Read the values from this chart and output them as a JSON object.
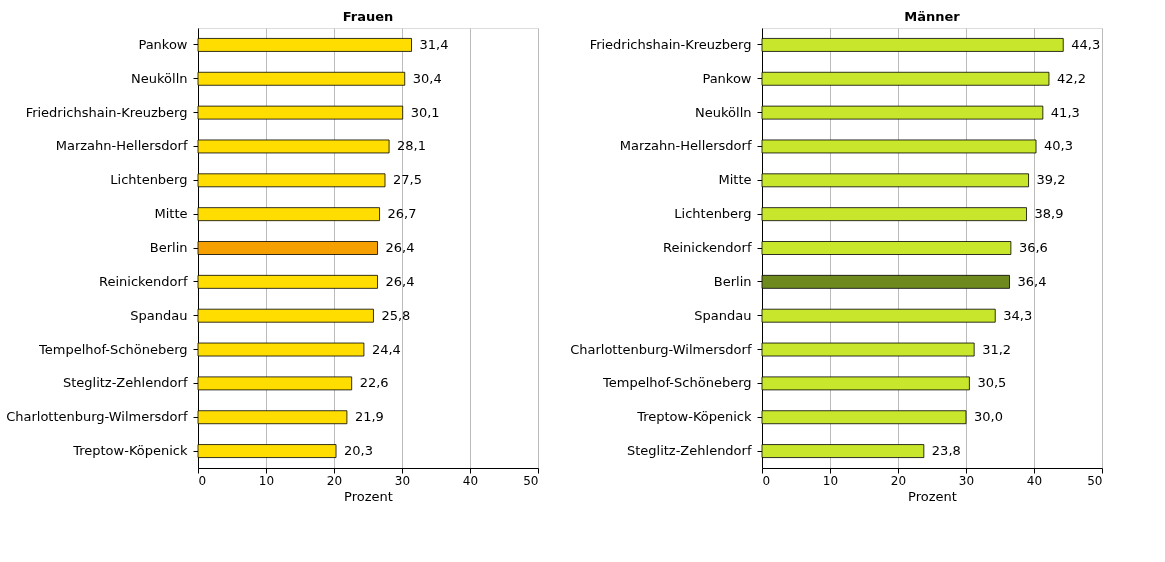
{
  "chart_data": [
    {
      "type": "bar",
      "orientation": "horizontal",
      "title": "Frauen",
      "xlabel": "Prozent",
      "categories": [
        "Pankow",
        "Neukölln",
        "Friedrichshain-Kreuzberg",
        "Marzahn-Hellersdorf",
        "Lichtenberg",
        "Mitte",
        "Berlin",
        "Reinickendorf",
        "Spandau",
        "Tempelhof-Schöneberg",
        "Steglitz-Zehlendorf",
        "Charlottenburg-Wilmersdorf",
        "Treptow-Köpenick"
      ],
      "values": [
        31.4,
        30.4,
        30.1,
        28.1,
        27.5,
        26.7,
        26.4,
        26.4,
        25.8,
        24.4,
        22.6,
        21.9,
        20.3
      ],
      "colors": [
        "#ffdd00",
        "#ffdd00",
        "#ffdd00",
        "#ffdd00",
        "#ffdd00",
        "#ffdd00",
        "#f5a000",
        "#ffdd00",
        "#ffdd00",
        "#ffdd00",
        "#ffdd00",
        "#ffdd00",
        "#ffdd00"
      ],
      "value_labels": [
        "31,4",
        "30,4",
        "30,1",
        "28,1",
        "27,5",
        "26,7",
        "26,4",
        "26,4",
        "25,8",
        "24,4",
        "22,6",
        "21,9",
        "20,3"
      ],
      "xlim": [
        0,
        50
      ],
      "xticks": [
        0,
        10,
        20,
        30,
        40,
        50
      ],
      "grid": "x"
    },
    {
      "type": "bar",
      "orientation": "horizontal",
      "title": "Männer",
      "xlabel": "Prozent",
      "categories": [
        "Friedrichshain-Kreuzberg",
        "Pankow",
        "Neukölln",
        "Marzahn-Hellersdorf",
        "Mitte",
        "Lichtenberg",
        "Reinickendorf",
        "Berlin",
        "Spandau",
        "Charlottenburg-Wilmersdorf",
        "Tempelhof-Schöneberg",
        "Treptow-Köpenick",
        "Steglitz-Zehlendorf"
      ],
      "values": [
        44.3,
        42.2,
        41.3,
        40.3,
        39.2,
        38.9,
        36.6,
        36.4,
        34.3,
        31.2,
        30.5,
        30.0,
        23.8
      ],
      "colors": [
        "#c8e62c",
        "#c8e62c",
        "#c8e62c",
        "#c8e62c",
        "#c8e62c",
        "#c8e62c",
        "#c8e62c",
        "#6e8a1e",
        "#c8e62c",
        "#c8e62c",
        "#c8e62c",
        "#c8e62c",
        "#c8e62c"
      ],
      "value_labels": [
        "44,3",
        "42,2",
        "41,3",
        "40,3",
        "39,2",
        "38,9",
        "36,6",
        "36,4",
        "34,3",
        "31,2",
        "30,5",
        "30,0",
        "23,8"
      ],
      "xlim": [
        0,
        50
      ],
      "xticks": [
        0,
        10,
        20,
        30,
        40,
        50
      ],
      "grid": "x"
    }
  ]
}
